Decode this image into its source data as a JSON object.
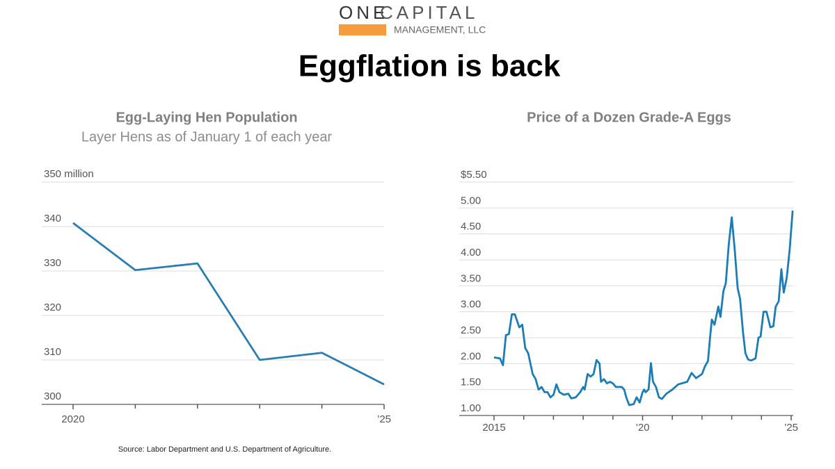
{
  "header": {
    "logo_one": "ONE",
    "logo_capital": "CAPITAL",
    "logo_sub": "MANAGEMENT, LLC",
    "title": "Eggflation is back"
  },
  "source": "Source: Labor Department and U.S. Department of Agriculture.",
  "chart_data": [
    {
      "type": "line",
      "title": "Egg-Laying Hen Population",
      "subtitle": "Layer Hens as of January 1 of each year",
      "x": [
        2020,
        2021,
        2022,
        2023,
        2024,
        2025
      ],
      "values": [
        340.8,
        330.2,
        331.7,
        310.0,
        311.6,
        304.5
      ],
      "color": "#2a7db2",
      "xlim": [
        2020,
        2025
      ],
      "xticks": [
        2020,
        {
          "value": 2025,
          "label": "’25"
        }
      ],
      "xminor": [
        2021,
        2022,
        2023,
        2024
      ],
      "ylim": [
        300,
        350
      ],
      "yticks": [
        300,
        310,
        320,
        330,
        340,
        {
          "value": 350,
          "label": "350 million"
        }
      ],
      "grid": true
    },
    {
      "type": "line",
      "title": "Price of a Dozen Grade-A Eggs",
      "x": [
        2015.0,
        2015.2,
        2015.3,
        2015.4,
        2015.5,
        2015.6,
        2015.7,
        2015.85,
        2015.95,
        2016.05,
        2016.15,
        2016.3,
        2016.4,
        2016.5,
        2016.6,
        2016.7,
        2016.8,
        2016.9,
        2017.0,
        2017.1,
        2017.2,
        2017.35,
        2017.5,
        2017.6,
        2017.75,
        2017.9,
        2018.0,
        2018.05,
        2018.15,
        2018.25,
        2018.35,
        2018.45,
        2018.55,
        2018.6,
        2018.7,
        2018.8,
        2018.9,
        2019.0,
        2019.1,
        2019.3,
        2019.38,
        2019.45,
        2019.55,
        2019.7,
        2019.8,
        2019.9,
        2020.0,
        2020.05,
        2020.1,
        2020.2,
        2020.28,
        2020.35,
        2020.45,
        2020.55,
        2020.65,
        2020.8,
        2021.0,
        2021.2,
        2021.5,
        2021.65,
        2021.8,
        2022.0,
        2022.1,
        2022.2,
        2022.27,
        2022.33,
        2022.42,
        2022.55,
        2022.62,
        2022.72,
        2022.8,
        2022.9,
        2023.0,
        2023.1,
        2023.2,
        2023.28,
        2023.38,
        2023.46,
        2023.55,
        2023.65,
        2023.8,
        2023.9,
        2023.97,
        2024.07,
        2024.17,
        2024.3,
        2024.4,
        2024.48,
        2024.58,
        2024.67,
        2024.75,
        2024.85,
        2024.95,
        2025.05
      ],
      "values": [
        2.12,
        2.1,
        1.97,
        2.55,
        2.57,
        2.95,
        2.95,
        2.7,
        2.75,
        2.3,
        2.2,
        1.8,
        1.7,
        1.5,
        1.55,
        1.45,
        1.45,
        1.35,
        1.4,
        1.6,
        1.45,
        1.4,
        1.42,
        1.33,
        1.35,
        1.45,
        1.55,
        1.5,
        1.8,
        1.75,
        1.8,
        2.07,
        2.0,
        1.65,
        1.7,
        1.62,
        1.65,
        1.62,
        1.55,
        1.55,
        1.5,
        1.35,
        1.2,
        1.22,
        1.35,
        1.25,
        1.45,
        1.5,
        1.45,
        1.5,
        2.01,
        1.65,
        1.55,
        1.35,
        1.32,
        1.42,
        1.5,
        1.6,
        1.65,
        1.82,
        1.72,
        1.8,
        1.95,
        2.05,
        2.5,
        2.85,
        2.75,
        3.1,
        2.9,
        3.4,
        3.55,
        4.3,
        4.82,
        4.2,
        3.45,
        3.25,
        2.6,
        2.2,
        2.08,
        2.06,
        2.1,
        2.5,
        2.52,
        3.0,
        3.0,
        2.7,
        2.72,
        3.1,
        3.2,
        3.82,
        3.37,
        3.65,
        4.2,
        4.95
      ],
      "color": "#1a7db5",
      "xlim": [
        2015,
        2025
      ],
      "xticks": [
        2015,
        {
          "value": 2020,
          "label": "’20"
        },
        {
          "value": 2025,
          "label": "’25"
        }
      ],
      "xminor": [
        2016,
        2017,
        2018,
        2019,
        2021,
        2022,
        2023,
        2024
      ],
      "ylim": [
        1,
        5.5
      ],
      "yticks": [
        {
          "value": 1,
          "label": "1.00"
        },
        {
          "value": 1.5,
          "label": "1.50"
        },
        {
          "value": 2,
          "label": "2.00"
        },
        {
          "value": 2.5,
          "label": "2.50"
        },
        {
          "value": 3,
          "label": "3.00"
        },
        {
          "value": 3.5,
          "label": "3.50"
        },
        {
          "value": 4,
          "label": "4.00"
        },
        {
          "value": 4.5,
          "label": "4.50"
        },
        {
          "value": 5,
          "label": "5.00"
        },
        {
          "value": 5.5,
          "label": "$5.50"
        }
      ],
      "grid": true
    }
  ]
}
